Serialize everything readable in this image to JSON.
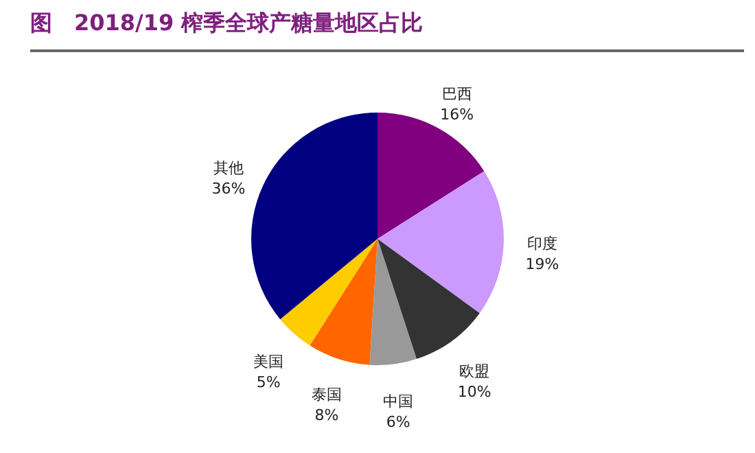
{
  "chart_data": {
    "type": "pie",
    "title": "图　2018/19 榨季全球产糖量地区占比",
    "categories": [
      "巴西",
      "印度",
      "欧盟",
      "中国",
      "泰国",
      "美国",
      "其他"
    ],
    "values": [
      16,
      19,
      10,
      6,
      8,
      5,
      36
    ],
    "value_labels": [
      "16%",
      "19%",
      "10%",
      "6%",
      "8%",
      "5%",
      "36%"
    ],
    "colors": [
      "#800080",
      "#cc99ff",
      "#333333",
      "#999999",
      "#ff6600",
      "#ffcc00",
      "#000080"
    ]
  }
}
